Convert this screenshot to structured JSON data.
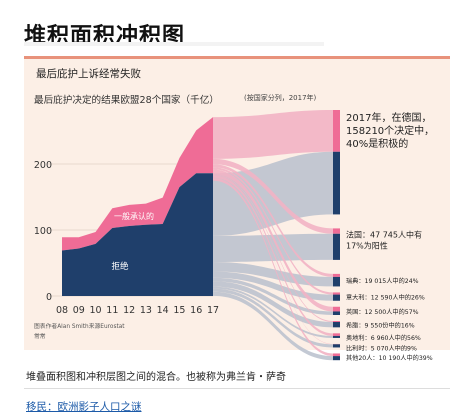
{
  "page": {
    "title": "堆积面积冲积图",
    "caption": "堆叠面积图和冲积层图之间的混合。也被称为弗兰肯・萨奇",
    "link": "移民：欧洲影子人口之谜"
  },
  "chart_data": {
    "type": "area",
    "title": "最后庇护上诉经常失败",
    "ylabel": "最后庇护决定的结果欧盟28个国家（千亿）",
    "x": [
      "08",
      "09",
      "10",
      "11",
      "12",
      "13",
      "14",
      "15",
      "16",
      "17"
    ],
    "ylim": [
      0,
      300
    ],
    "yticks": [
      "0",
      "100",
      "200"
    ],
    "series": [
      {
        "name": "拒绝",
        "values": [
          69,
          72,
          79,
          103,
          106,
          108,
          109,
          165,
          186,
          186
        ]
      },
      {
        "name": "一般承认的",
        "values": [
          20,
          17,
          18,
          30,
          32,
          32,
          40,
          44,
          65,
          85
        ]
      }
    ],
    "alluvial_header": "(按国家分列，2017年)",
    "countries": [
      {
        "label": "2017年，在德国，158210个决定中，40%是积极的",
        "lines": [
          "2017年，在德国，",
          "158210个决定中，",
          "40%是积极的"
        ],
        "total": 158.2,
        "positive_share": 0.4
      },
      {
        "label": "法国：47 745人中有17%为阳性",
        "lines": [
          "法国：47 745人中有",
          "17%为阳性"
        ],
        "total": 47.7,
        "positive_share": 0.17
      },
      {
        "label": "瑞典：19 015人中的24%",
        "total": 19.0,
        "positive_share": 0.24
      },
      {
        "label": "意大利：12 590人中的26%",
        "total": 12.6,
        "positive_share": 0.26
      },
      {
        "label": "英国：12 500人中的57%",
        "total": 12.5,
        "positive_share": 0.57
      },
      {
        "label": "希腊：9 550份中的16%",
        "total": 9.6,
        "positive_share": 0.16
      },
      {
        "label": "奥地利：6 960人中的56%",
        "total": 7.0,
        "positive_share": 0.56
      },
      {
        "label": "比利时：5 070人中的9%",
        "total": 5.1,
        "positive_share": 0.09
      },
      {
        "label": "其他20人：10 190人中的39%",
        "total": 10.2,
        "positive_share": 0.39
      }
    ],
    "source": [
      "图表作者Alan Smith来源Eurostat",
      "常常"
    ],
    "colors": {
      "rejected": "#1f3f6b",
      "accepted": "#ef6c96",
      "flow": "#b8bfcc",
      "flow_pink": "#f2b2c4",
      "panel": "#fcefe6"
    }
  }
}
